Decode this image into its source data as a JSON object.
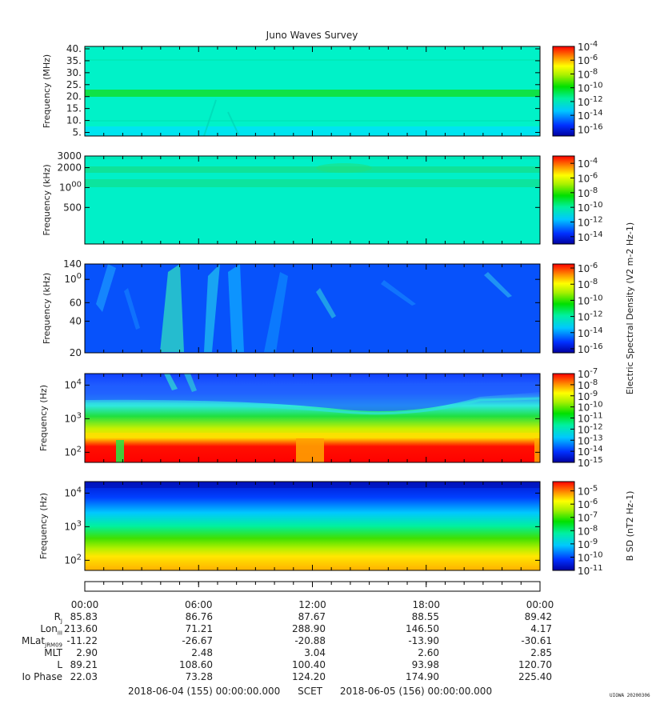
{
  "title": "Juno Waves Survey",
  "chart_data": [
    {
      "type": "heatmap",
      "ylabel": "Frequency (MHz)",
      "yticks": [
        "40.",
        "35.",
        "30.",
        "25.",
        "20.",
        "15.",
        "10.",
        "5."
      ],
      "ytick_values": [
        40,
        35,
        30,
        25,
        20,
        15,
        10,
        5
      ],
      "ylim": [
        3.5,
        41
      ],
      "yscale": "linear",
      "colorbar": {
        "ticks": [
          "10-4",
          "10-6",
          "10-8",
          "10-10",
          "10-12",
          "10-14",
          "10-16"
        ],
        "exponents": [
          -4,
          -6,
          -8,
          -10,
          -12,
          -14,
          -16
        ],
        "range": [
          -17,
          -4
        ]
      }
    },
    {
      "type": "heatmap",
      "ylabel": "Frequency (kHz)",
      "yticks": [
        "3000",
        "2000",
        "1000",
        "500"
      ],
      "ytick_values": [
        3000,
        2000,
        1000,
        500
      ],
      "ylim": [
        140,
        3000
      ],
      "yscale": "log",
      "colorbar": {
        "ticks": [
          "10-4",
          "10-6",
          "10-8",
          "10-10",
          "10-12",
          "10-14"
        ],
        "exponents": [
          -4,
          -6,
          -8,
          -10,
          -12,
          -14
        ],
        "range": [
          -15,
          -3
        ]
      }
    },
    {
      "type": "heatmap",
      "ylabel": "Frequency (kHz)",
      "yticks": [
        "140",
        "100",
        "60",
        "40",
        "20"
      ],
      "ytick_values": [
        140,
        100,
        60,
        40,
        20
      ],
      "ylim": [
        20,
        140
      ],
      "yscale": "log",
      "colorbar": {
        "label": "Electric Spectral Density (V2 m-2 Hz-1)",
        "ticks": [
          "10-6",
          "10-8",
          "10-10",
          "10-12",
          "10-14",
          "10-16"
        ],
        "exponents": [
          -6,
          -8,
          -10,
          -12,
          -14,
          -16
        ],
        "range": [
          -16.5,
          -5.5
        ]
      }
    },
    {
      "type": "heatmap",
      "ylabel": "Frequency (Hz)",
      "yticks": [
        "104",
        "103",
        "102"
      ],
      "ytick_values": [
        10000,
        1000,
        100
      ],
      "ylim": [
        50,
        22000
      ],
      "yscale": "log",
      "colorbar": {
        "ticks": [
          "10-7",
          "10-8",
          "10-9",
          "10-10",
          "10-11",
          "10-12",
          "10-13",
          "10-14",
          "10-15"
        ],
        "exponents": [
          -7,
          -8,
          -9,
          -10,
          -11,
          -12,
          -13,
          -14,
          -15
        ],
        "range": [
          -15,
          -7
        ]
      }
    },
    {
      "type": "heatmap",
      "ylabel": "Frequency (Hz)",
      "yticks": [
        "104",
        "103",
        "102"
      ],
      "ytick_values": [
        10000,
        1000,
        100
      ],
      "ylim": [
        50,
        22000
      ],
      "yscale": "log",
      "colorbar": {
        "label": "B SD (nT2 Hz-1)",
        "ticks": [
          "10-5",
          "10-6",
          "10-7",
          "10-8",
          "10-9",
          "10-10",
          "10-11"
        ],
        "exponents": [
          -5,
          -6,
          -7,
          -8,
          -9,
          -10,
          -11
        ],
        "range": [
          -11,
          -4.3
        ]
      }
    }
  ],
  "time_axis": [
    "00:00",
    "06:00",
    "12:00",
    "18:00",
    "00:00"
  ],
  "ephemeris": {
    "labels": [
      "R",
      "Lon",
      "MLat",
      "MLT",
      "L",
      "Io Phase"
    ],
    "label_subs": [
      "J",
      "III",
      "JRM09",
      "",
      "",
      ""
    ],
    "rows": [
      [
        "85.83",
        "86.76",
        "87.67",
        "88.55",
        "89.42"
      ],
      [
        "213.60",
        "71.21",
        "288.90",
        "146.50",
        "4.17"
      ],
      [
        "-11.22",
        "-26.67",
        "-20.88",
        "-13.90",
        "-30.61"
      ],
      [
        "2.90",
        "2.48",
        "3.04",
        "2.60",
        "2.85"
      ],
      [
        "89.21",
        "108.60",
        "100.40",
        "93.98",
        "120.70"
      ],
      [
        "22.03",
        "73.28",
        "124.20",
        "174.90",
        "225.40"
      ]
    ]
  },
  "footer": {
    "start": "2018-06-04 (155) 00:00:00.000",
    "scet": "SCET",
    "end": "2018-06-05 (156) 00:00:00.000"
  },
  "credit": "UIOWA 20200306"
}
